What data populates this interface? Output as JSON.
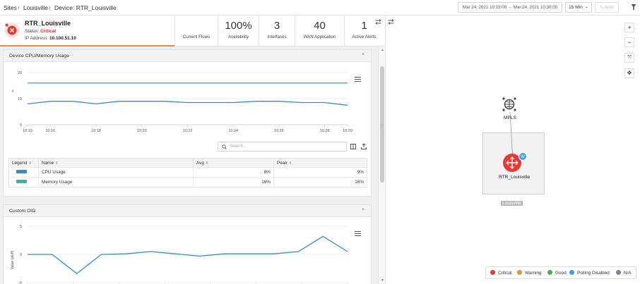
{
  "breadcrumb": {
    "sites": "Sites",
    "site": "Louisville",
    "device": "Device: RTR_Louisville"
  },
  "timerange": {
    "range": "Mar 24, 2021 10:15:00 → Mar 24, 2021 10:30:00",
    "interval": "15 Min",
    "auto": "Auto"
  },
  "device": {
    "name": "RTR_Louisville",
    "status_label": "Status: ",
    "status": "Critical",
    "ip_label": "IP Address: ",
    "ip": "10.100.51.10"
  },
  "kpis": [
    {
      "value": "",
      "label": "Current Flows"
    },
    {
      "value": "100%",
      "label": "Availability"
    },
    {
      "value": "3",
      "label": "Interfaces"
    },
    {
      "value": "40",
      "label": "WAN Application"
    },
    {
      "value": "1",
      "label": "Active Alerts"
    }
  ],
  "cpu_panel": {
    "title": "Device CPU/Memory Usage",
    "search_placeholder": "Search...",
    "columns": [
      "Legend",
      "Name",
      "Avg",
      "Peak"
    ],
    "rows": [
      {
        "name": "CPU Usage",
        "avg": "8%",
        "peak": "9%",
        "color": "#2f8fc9"
      },
      {
        "name": "Memory Usage",
        "avg": "16%",
        "peak": "16%",
        "color": "#35b8a8"
      }
    ]
  },
  "oid_panel": {
    "title": "Custom OID",
    "ylabel": "Value (stuff)"
  },
  "map": {
    "cloud_label": "MPLS",
    "router_label": "RTR_Louisville",
    "group_label": "Louisville",
    "legend": [
      {
        "label": "Critical",
        "color": "#e53935"
      },
      {
        "label": "Warning",
        "color": "#e8942a"
      },
      {
        "label": "Good",
        "color": "#43b049"
      },
      {
        "label": "Polling Disabled",
        "color": "#3b9ee8"
      },
      {
        "label": "N/A",
        "color": "#7d8590"
      }
    ]
  },
  "chart_data": [
    {
      "type": "line",
      "title": "",
      "x": [
        "10:15",
        "10:16",
        "10:17",
        "10:18",
        "10:19",
        "10:20",
        "10:21",
        "10:22",
        "10:23",
        "10:24",
        "10:25",
        "10:26",
        "10:27",
        "10:28",
        "10:29"
      ],
      "xticks": [
        "10:15",
        "10:16",
        "10:18",
        "10:20",
        "10:22",
        "10:24",
        "10:26",
        "10:28",
        "10:29"
      ],
      "yticks": [
        "0",
        "10",
        "20"
      ],
      "ylim": [
        0,
        20
      ],
      "series": [
        {
          "name": "CPU Usage",
          "color": "#2f8fc9",
          "values": [
            8,
            9,
            9,
            8,
            9,
            9,
            9,
            8.5,
            8.5,
            8.5,
            9,
            9,
            8.5,
            8.5,
            7.5
          ]
        },
        {
          "name": "Memory Usage",
          "color": "#35b8a8",
          "values": [
            16,
            16,
            16,
            16,
            16,
            16,
            16,
            16,
            16,
            16,
            16,
            16,
            16,
            16,
            16
          ]
        }
      ]
    },
    {
      "type": "line",
      "title": "Custom OID",
      "ylabel": "Value (stuff)",
      "yticks": [
        "5",
        "0",
        "-5"
      ],
      "ylim": [
        -5,
        5
      ],
      "series": [
        {
          "values": [
            0,
            0,
            -3.4,
            0,
            0.1,
            0.5,
            0.1,
            -0.3,
            0.1,
            0.1,
            0.1,
            0.5,
            3.2,
            0.5
          ]
        }
      ]
    }
  ]
}
